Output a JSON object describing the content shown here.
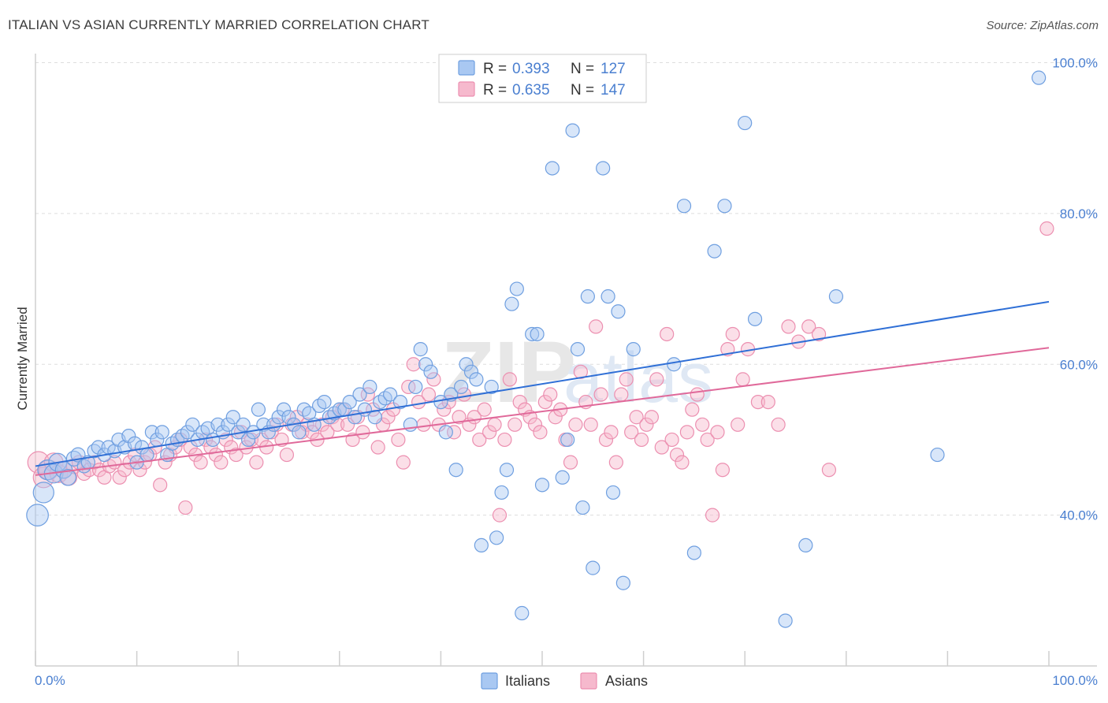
{
  "title": "ITALIAN VS ASIAN CURRENTLY MARRIED CORRELATION CHART",
  "source": "Source: ZipAtlas.com",
  "colors": {
    "italians_fill": "#a9c8f2",
    "italians_stroke": "#6f9fe0",
    "italians_line": "#2f6fd6",
    "asians_fill": "#f6b9cd",
    "asians_stroke": "#ec8fb0",
    "asians_line": "#e0699a",
    "tick_blue": "#4a7fd0",
    "grid": "#dddddd"
  },
  "chart_data": {
    "type": "scatter",
    "title": "ITALIAN VS ASIAN CURRENTLY MARRIED CORRELATION CHART",
    "xlabel": "",
    "ylabel": "Currently Married",
    "xlim": [
      0,
      100
    ],
    "ylim": [
      20,
      100
    ],
    "x_tick_labels": [
      "0.0%",
      "100.0%"
    ],
    "y_tick_labels": [
      "40.0%",
      "60.0%",
      "80.0%",
      "100.0%"
    ],
    "y_ticks": [
      40,
      60,
      80,
      100
    ],
    "grid": true,
    "legend_position": "top-center",
    "legend": [
      {
        "series": "Italians",
        "r_label": "R =",
        "r_value": "0.393",
        "n_label": "N =",
        "n_value": "127"
      },
      {
        "series": "Asians",
        "r_label": "R =",
        "r_value": "0.635",
        "n_label": "N =",
        "n_value": "147"
      }
    ],
    "series": [
      {
        "name": "Italians",
        "trend": {
          "x": [
            0,
            100
          ],
          "y": [
            46.5,
            68.3
          ]
        },
        "points": [
          [
            0.2,
            40
          ],
          [
            0.8,
            43
          ],
          [
            1.2,
            46
          ],
          [
            1.8,
            45.5
          ],
          [
            2.2,
            47
          ],
          [
            2.8,
            46
          ],
          [
            3.2,
            45
          ],
          [
            3.8,
            47.5
          ],
          [
            4.2,
            48
          ],
          [
            4.8,
            46.5
          ],
          [
            5.2,
            47
          ],
          [
            5.8,
            48.5
          ],
          [
            6.2,
            49
          ],
          [
            6.8,
            48
          ],
          [
            7.2,
            49
          ],
          [
            7.8,
            48.5
          ],
          [
            8.2,
            50
          ],
          [
            8.8,
            49
          ],
          [
            9.2,
            50.5
          ],
          [
            9.8,
            49.5
          ],
          [
            10,
            47
          ],
          [
            10.5,
            49
          ],
          [
            11,
            48
          ],
          [
            11.5,
            51
          ],
          [
            12,
            50
          ],
          [
            12.5,
            51
          ],
          [
            13,
            48
          ],
          [
            13.5,
            49.5
          ],
          [
            14,
            50
          ],
          [
            14.5,
            50.5
          ],
          [
            15,
            51
          ],
          [
            15.5,
            52
          ],
          [
            16,
            50
          ],
          [
            16.5,
            51
          ],
          [
            17,
            51.5
          ],
          [
            17.5,
            50
          ],
          [
            18,
            52
          ],
          [
            18.5,
            51
          ],
          [
            19,
            52
          ],
          [
            19.5,
            53
          ],
          [
            20,
            51
          ],
          [
            20.5,
            52
          ],
          [
            21,
            50
          ],
          [
            21.5,
            51
          ],
          [
            22,
            54
          ],
          [
            22.5,
            52
          ],
          [
            23,
            51
          ],
          [
            23.5,
            52
          ],
          [
            24,
            53
          ],
          [
            24.5,
            54
          ],
          [
            25,
            53
          ],
          [
            25.5,
            52
          ],
          [
            26,
            51
          ],
          [
            26.5,
            54
          ],
          [
            27,
            53.5
          ],
          [
            27.5,
            52
          ],
          [
            28,
            54.5
          ],
          [
            28.5,
            55
          ],
          [
            29,
            53
          ],
          [
            29.5,
            53.5
          ],
          [
            30,
            54
          ],
          [
            30.5,
            54
          ],
          [
            31,
            55
          ],
          [
            31.5,
            53
          ],
          [
            32,
            56
          ],
          [
            32.5,
            54
          ],
          [
            33,
            57
          ],
          [
            33.5,
            53
          ],
          [
            34,
            55
          ],
          [
            34.5,
            55.5
          ],
          [
            35,
            56
          ],
          [
            36,
            55
          ],
          [
            37,
            52
          ],
          [
            37.5,
            57
          ],
          [
            38,
            62
          ],
          [
            38.5,
            60
          ],
          [
            39,
            59
          ],
          [
            40,
            55
          ],
          [
            40.5,
            51
          ],
          [
            41,
            56
          ],
          [
            41.5,
            46
          ],
          [
            42,
            57
          ],
          [
            42.5,
            60
          ],
          [
            43,
            59
          ],
          [
            43.5,
            58
          ],
          [
            44,
            36
          ],
          [
            45,
            57
          ],
          [
            45.5,
            37
          ],
          [
            46,
            43
          ],
          [
            46.5,
            46
          ],
          [
            47,
            68
          ],
          [
            47.5,
            70
          ],
          [
            48,
            27
          ],
          [
            49,
            64
          ],
          [
            49.5,
            64
          ],
          [
            50,
            44
          ],
          [
            51,
            86
          ],
          [
            52,
            45
          ],
          [
            52.5,
            50
          ],
          [
            53,
            91
          ],
          [
            53.5,
            62
          ],
          [
            54,
            41
          ],
          [
            54.5,
            69
          ],
          [
            55,
            33
          ],
          [
            56,
            86
          ],
          [
            56.5,
            69
          ],
          [
            57,
            43
          ],
          [
            57.5,
            67
          ],
          [
            58,
            31
          ],
          [
            59,
            62
          ],
          [
            63,
            60
          ],
          [
            64,
            81
          ],
          [
            65,
            35
          ],
          [
            67,
            75
          ],
          [
            68,
            81
          ],
          [
            70,
            92
          ],
          [
            71,
            66
          ],
          [
            74,
            26
          ],
          [
            76,
            36
          ],
          [
            79,
            69
          ],
          [
            89,
            48
          ],
          [
            99,
            98
          ]
        ]
      },
      {
        "name": "Asians",
        "trend": {
          "x": [
            0,
            100
          ],
          "y": [
            45.3,
            62.2
          ]
        },
        "points": [
          [
            0.3,
            47
          ],
          [
            0.8,
            45
          ],
          [
            1.3,
            46
          ],
          [
            1.8,
            47
          ],
          [
            2.3,
            45.5
          ],
          [
            2.8,
            46
          ],
          [
            3.3,
            45
          ],
          [
            3.8,
            46.5
          ],
          [
            4.3,
            47
          ],
          [
            4.8,
            45.5
          ],
          [
            5.3,
            46
          ],
          [
            5.8,
            47
          ],
          [
            6.3,
            46
          ],
          [
            6.8,
            45
          ],
          [
            7.3,
            46.5
          ],
          [
            7.8,
            47
          ],
          [
            8.3,
            45
          ],
          [
            8.8,
            46
          ],
          [
            9.3,
            47
          ],
          [
            9.8,
            48
          ],
          [
            10.3,
            46
          ],
          [
            10.8,
            47
          ],
          [
            11.3,
            48
          ],
          [
            11.8,
            49
          ],
          [
            12.3,
            44
          ],
          [
            12.8,
            47
          ],
          [
            13.3,
            48
          ],
          [
            13.8,
            49
          ],
          [
            14.3,
            50
          ],
          [
            14.8,
            41
          ],
          [
            15.3,
            49
          ],
          [
            15.8,
            48
          ],
          [
            16.3,
            47
          ],
          [
            16.8,
            50
          ],
          [
            17.3,
            49
          ],
          [
            17.8,
            48
          ],
          [
            18.3,
            47
          ],
          [
            18.8,
            50
          ],
          [
            19.3,
            49
          ],
          [
            19.8,
            48
          ],
          [
            20.3,
            51
          ],
          [
            20.8,
            49
          ],
          [
            21.3,
            50
          ],
          [
            21.8,
            47
          ],
          [
            22.3,
            50
          ],
          [
            22.8,
            49
          ],
          [
            23.3,
            51
          ],
          [
            23.8,
            52
          ],
          [
            24.3,
            50
          ],
          [
            24.8,
            48
          ],
          [
            25.3,
            52
          ],
          [
            25.8,
            53
          ],
          [
            26.3,
            51
          ],
          [
            26.8,
            52
          ],
          [
            27.3,
            51
          ],
          [
            27.8,
            50
          ],
          [
            28.3,
            52
          ],
          [
            28.8,
            51
          ],
          [
            29.3,
            53
          ],
          [
            29.8,
            52
          ],
          [
            30.3,
            54
          ],
          [
            30.8,
            52
          ],
          [
            31.3,
            50
          ],
          [
            31.8,
            53
          ],
          [
            32.3,
            51
          ],
          [
            32.8,
            56
          ],
          [
            33.3,
            54
          ],
          [
            33.8,
            49
          ],
          [
            34.3,
            52
          ],
          [
            34.8,
            53
          ],
          [
            35.3,
            54
          ],
          [
            35.8,
            50
          ],
          [
            36.3,
            47
          ],
          [
            36.8,
            57
          ],
          [
            37.3,
            60
          ],
          [
            37.8,
            55
          ],
          [
            38.3,
            52
          ],
          [
            38.8,
            56
          ],
          [
            39.3,
            58
          ],
          [
            39.8,
            52
          ],
          [
            40.3,
            54
          ],
          [
            40.8,
            55
          ],
          [
            41.3,
            51
          ],
          [
            41.8,
            53
          ],
          [
            42.3,
            56
          ],
          [
            42.8,
            52
          ],
          [
            43.3,
            53
          ],
          [
            43.8,
            50
          ],
          [
            44.3,
            54
          ],
          [
            44.8,
            51
          ],
          [
            45.3,
            52
          ],
          [
            45.8,
            40
          ],
          [
            46.3,
            50
          ],
          [
            46.8,
            58
          ],
          [
            47.3,
            52
          ],
          [
            47.8,
            55
          ],
          [
            48.3,
            54
          ],
          [
            48.8,
            53
          ],
          [
            49.3,
            52
          ],
          [
            49.8,
            51
          ],
          [
            50.3,
            55
          ],
          [
            50.8,
            56
          ],
          [
            51.3,
            53
          ],
          [
            51.8,
            54
          ],
          [
            52.3,
            50
          ],
          [
            52.8,
            47
          ],
          [
            53.3,
            52
          ],
          [
            53.8,
            59
          ],
          [
            54.3,
            55
          ],
          [
            54.8,
            52
          ],
          [
            55.3,
            65
          ],
          [
            55.8,
            56
          ],
          [
            56.3,
            50
          ],
          [
            56.8,
            51
          ],
          [
            57.3,
            47
          ],
          [
            57.8,
            56
          ],
          [
            58.3,
            58
          ],
          [
            58.8,
            51
          ],
          [
            59.3,
            53
          ],
          [
            59.8,
            50
          ],
          [
            60.3,
            52
          ],
          [
            60.8,
            53
          ],
          [
            61.3,
            58
          ],
          [
            61.8,
            49
          ],
          [
            62.3,
            64
          ],
          [
            62.8,
            50
          ],
          [
            63.3,
            48
          ],
          [
            63.8,
            47
          ],
          [
            64.3,
            51
          ],
          [
            64.8,
            54
          ],
          [
            65.3,
            56
          ],
          [
            65.8,
            52
          ],
          [
            66.3,
            50
          ],
          [
            66.8,
            40
          ],
          [
            67.3,
            51
          ],
          [
            67.8,
            46
          ],
          [
            68.3,
            62
          ],
          [
            68.8,
            64
          ],
          [
            69.3,
            52
          ],
          [
            69.8,
            58
          ],
          [
            70.3,
            62
          ],
          [
            71.3,
            55
          ],
          [
            72.3,
            55
          ],
          [
            73.3,
            52
          ],
          [
            74.3,
            65
          ],
          [
            75.3,
            63
          ],
          [
            76.3,
            65
          ],
          [
            77.3,
            64
          ],
          [
            78.3,
            46
          ],
          [
            99.8,
            78
          ]
        ]
      }
    ]
  },
  "bottom_legend": [
    {
      "series": "Italians",
      "label": "Italians"
    },
    {
      "series": "Asians",
      "label": "Asians"
    }
  ]
}
